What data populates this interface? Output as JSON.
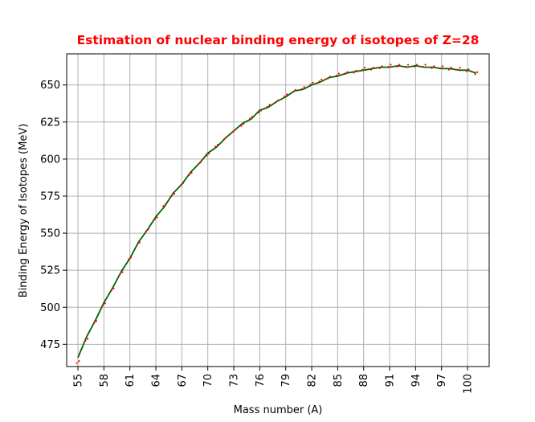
{
  "chart_data": {
    "type": "line",
    "title": "Estimation of nuclear binding energy of isotopes of Z=28",
    "xlabel": "Mass number (A)",
    "ylabel": "Binding Energy of Isotopes (MeV)",
    "xlim": [
      53.7,
      102.5
    ],
    "ylim": [
      460,
      671
    ],
    "grid": true,
    "x_ticks": [
      55,
      58,
      61,
      64,
      67,
      70,
      73,
      76,
      79,
      82,
      85,
      88,
      91,
      94,
      97,
      100
    ],
    "y_ticks": [
      475,
      500,
      525,
      550,
      575,
      600,
      625,
      650
    ],
    "colors": {
      "title": "#ff0000",
      "fit_line": "#006400",
      "points": "#ff0000",
      "grid": "#b0b0b0",
      "axes": "#000000"
    },
    "series": [
      {
        "style": "line",
        "x": [
          55,
          56,
          57,
          58,
          59,
          60,
          61,
          62,
          63,
          64,
          65,
          66,
          67,
          68,
          69,
          70,
          71,
          72,
          73,
          74,
          75,
          76,
          77,
          78,
          79,
          80,
          81,
          82,
          83,
          84,
          85,
          86,
          87,
          88,
          89,
          90,
          91,
          92,
          93,
          94,
          95,
          96,
          97,
          98,
          99,
          100,
          101
        ],
        "y": [
          466,
          480,
          491,
          503,
          513,
          524,
          533,
          544,
          552,
          561,
          568,
          577,
          583,
          591,
          597,
          604,
          608,
          614,
          619,
          624,
          627,
          633,
          635,
          639,
          642,
          646,
          647,
          650,
          652,
          655,
          656,
          658,
          659,
          660,
          661,
          662,
          662,
          663,
          662,
          663,
          662,
          662,
          661,
          661,
          660,
          660,
          658
        ]
      },
      {
        "style": "points",
        "x": [
          55,
          56,
          57,
          58,
          59,
          60,
          61,
          62,
          63,
          64,
          65,
          66,
          67,
          68,
          69,
          70,
          71,
          72,
          73,
          74,
          75,
          76,
          77,
          78,
          79,
          80,
          81,
          82,
          83,
          84,
          85,
          86,
          87,
          88,
          89,
          90,
          91,
          92,
          93,
          94,
          95,
          96,
          97,
          98,
          99,
          100,
          101
        ],
        "y": [
          463,
          478,
          490,
          502,
          512,
          523,
          533,
          543,
          552,
          560,
          569,
          576,
          583,
          590,
          597,
          603,
          609,
          614,
          619,
          623,
          628,
          632,
          636,
          639,
          643,
          646,
          648,
          651,
          653,
          655,
          657,
          658,
          659,
          661,
          661,
          662,
          663,
          663,
          663,
          663,
          663,
          662,
          662,
          661,
          661,
          660,
          658
        ]
      }
    ]
  }
}
